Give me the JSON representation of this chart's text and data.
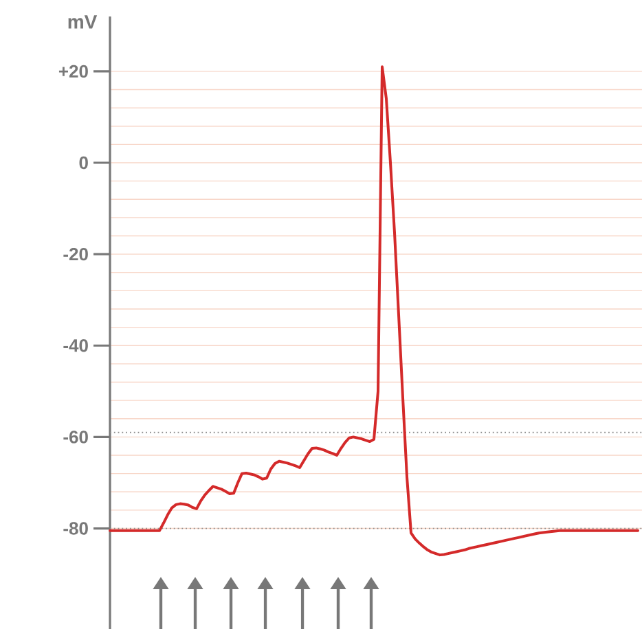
{
  "chart_data": {
    "type": "line",
    "ylabel": "mV",
    "categories": [
      null,
      null,
      null,
      null,
      null,
      null,
      null,
      null,
      null,
      null,
      null,
      null,
      null,
      null,
      null,
      null,
      null,
      null,
      null,
      null,
      null,
      null,
      null,
      null,
      null,
      null,
      null,
      null,
      null,
      null,
      null,
      null,
      null,
      null,
      null,
      null,
      null,
      null,
      null,
      null,
      null,
      null,
      null,
      null,
      null,
      null,
      null,
      null,
      null,
      null,
      null,
      null,
      null,
      null,
      null,
      null,
      null,
      null,
      null,
      null,
      null,
      null,
      null,
      null,
      null,
      null,
      null,
      null,
      null,
      null,
      null,
      null,
      null,
      null,
      null,
      null,
      null,
      null,
      null,
      null,
      null,
      null,
      null,
      null,
      null,
      null,
      null,
      null,
      null,
      null,
      null,
      null,
      null,
      null,
      null,
      null,
      null,
      null,
      null,
      null,
      null,
      null,
      null,
      null,
      null,
      null,
      null,
      null,
      null,
      null,
      null,
      null,
      null,
      null,
      null,
      null,
      null,
      null,
      null,
      null,
      null,
      null,
      null,
      null,
      null,
      null,
      null,
      null,
      null
    ],
    "series": [
      {
        "color": "#d42a2a",
        "values": [
          -80.5,
          -80.5,
          -80.5,
          -80.5,
          -80.5,
          -80.5,
          -80.5,
          -80.5,
          -80.5,
          -80.5,
          -80.5,
          -80.5,
          -80.5,
          -78.8,
          -77,
          -75.5,
          -74.8,
          -74.6,
          -74.7,
          -74.9,
          -75.4,
          -75.7,
          -74,
          -72.7,
          -71.7,
          -70.8,
          -71.1,
          -71.4,
          -71.9,
          -72.4,
          -72.3,
          -70,
          -68,
          -67.9,
          -68.1,
          -68.3,
          -68.7,
          -69.2,
          -69,
          -67,
          -65.8,
          -65.3,
          -65.5,
          -65.7,
          -66,
          -66.3,
          -66.7,
          -65.2,
          -63.7,
          -62.5,
          -62.4,
          -62.6,
          -62.9,
          -63.3,
          -63.6,
          -64,
          -62.5,
          -61.2,
          -60.2,
          -60,
          -60.2,
          -60.4,
          -60.7,
          -61,
          -60.5,
          -50,
          21,
          14,
          0,
          -15.3,
          -33.3,
          -51.4,
          -68.7,
          -81,
          -82.3,
          -83.2,
          -84,
          -84.7,
          -85.2,
          -85.5,
          -85.8,
          -85.7,
          -85.5,
          -85.3,
          -85.1,
          -84.9,
          -84.7,
          -84.4,
          -84.2,
          -84,
          -83.8,
          -83.6,
          -83.4,
          -83.2,
          -83,
          -82.8,
          -82.6,
          -82.4,
          -82.2,
          -82,
          -81.8,
          -81.6,
          -81.4,
          -81.2,
          -81,
          -80.9,
          -80.8,
          -80.7,
          -80.6,
          -80.5,
          -80.5,
          -80.5,
          -80.5,
          -80.5,
          -80.5,
          -80.5,
          -80.5,
          -80.5,
          -80.5,
          -80.5,
          -80.5,
          -80.5,
          -80.5,
          -80.5,
          -80.5,
          -80.5,
          -80.5,
          -80.5,
          -80.5
        ]
      }
    ],
    "ylim": [
      -102,
      32
    ],
    "yticks": [
      {
        "value": 20,
        "label": "+20"
      },
      0,
      -20,
      -40,
      -60,
      -80
    ],
    "ref_lines": [
      {
        "axis": "y",
        "value": -59,
        "color": "#8c8c8c",
        "line_style": "dotted"
      },
      {
        "axis": "y",
        "value": -80,
        "color": "#8c8c8c",
        "line_style": "dotted"
      }
    ],
    "grid": true,
    "marker": "none",
    "line_style": "solid",
    "tick_labels": "y"
  }
}
